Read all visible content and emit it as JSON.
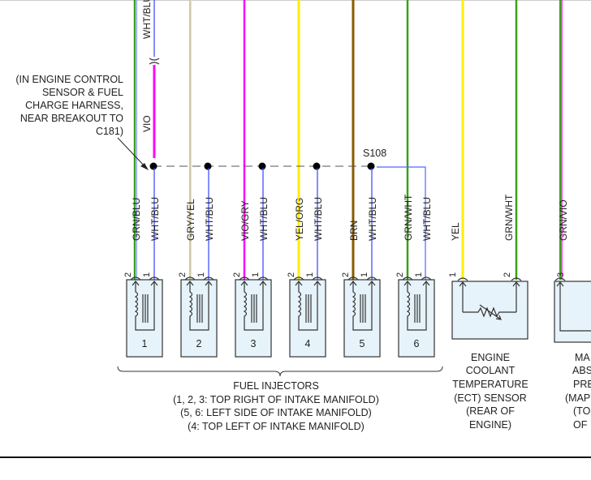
{
  "note": [
    "(IN ENGINE CONTROL",
    "SENSOR & FUEL",
    "CHARGE HARNESS,",
    "NEAR BREAKOUT TO",
    "C181)"
  ],
  "splice": "S108",
  "top_wires": {
    "upper": "WHT/BLU",
    "lower": "VIO"
  },
  "injectors": [
    {
      "num": "1",
      "pin2_wire": "GRN/BLU",
      "pin1_wire": "WHT/BLU"
    },
    {
      "num": "2",
      "pin2_wire": "GRY/YEL",
      "pin1_wire": "WHT/BLU"
    },
    {
      "num": "3",
      "pin2_wire": "VIO/GRY",
      "pin1_wire": "WHT/BLU"
    },
    {
      "num": "4",
      "pin2_wire": "YEL/ORG",
      "pin1_wire": "WHT/BLU"
    },
    {
      "num": "5",
      "pin2_wire": "BRN",
      "pin1_wire": "WHT/BLU"
    },
    {
      "num": "6",
      "pin2_wire": "GRN/WHT",
      "pin1_wire": "WHT/BLU"
    }
  ],
  "pins": {
    "one": "1",
    "two": "2",
    "three": "3"
  },
  "injector_caption": [
    "FUEL INJECTORS",
    "(1, 2, 3: TOP RIGHT OF INTAKE MANIFOLD)",
    "(5, 6: LEFT SIDE OF INTAKE MANIFOLD)",
    "(4: TOP LEFT OF INTAKE MANIFOLD)"
  ],
  "ect": {
    "pin1_wire": "YEL",
    "pin2_wire": "GRN/WHT",
    "caption": [
      "ENGINE",
      "COOLANT",
      "TEMPERATURE",
      "(ECT) SENSOR",
      "(REAR OF",
      "ENGINE)"
    ]
  },
  "map": {
    "pin3_wire": "GRN/VIO",
    "caption": [
      "MA",
      "ABS",
      "PRE",
      "(MAP",
      "(TO",
      "OF"
    ]
  },
  "colors": {
    "green": "#3aa01a",
    "blue": "#3344ff",
    "magenta": "#ff00ff",
    "yellow": "#ffee00",
    "brown": "#8a5a00",
    "gray": "#c0c0c0",
    "box": "#e6f3fa"
  }
}
